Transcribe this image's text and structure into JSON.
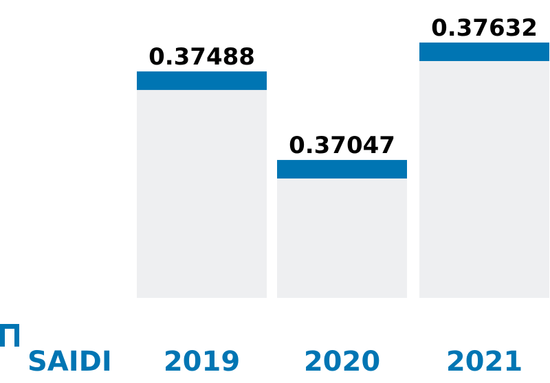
{
  "chart_data": {
    "type": "bar",
    "categories": [
      "2019",
      "2020",
      "2021"
    ],
    "values": [
      0.37488,
      0.37047,
      0.37632
    ],
    "value_labels": [
      "0.37488",
      "0.37047",
      "0.37632"
    ],
    "title": "",
    "xlabel": "",
    "ylabel": "",
    "ylim": [
      0.3636,
      0.3769
    ],
    "grid": false,
    "legend": {
      "placement": "bottom-left",
      "label": "SAIDI"
    },
    "colors": {
      "bar_background": "#eeeff1",
      "bar_cap": "#0075b3",
      "category_text": "#0075b3",
      "value_text": "#000000",
      "legend_icon": "#0075b3"
    }
  }
}
